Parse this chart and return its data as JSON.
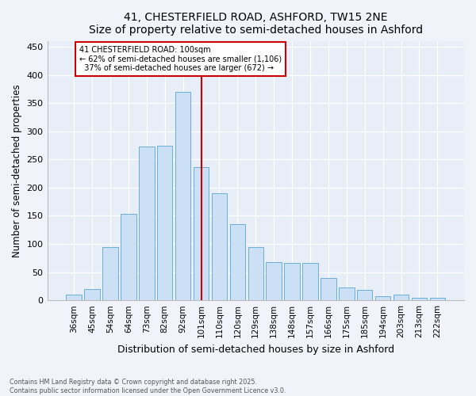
{
  "title": "41, CHESTERFIELD ROAD, ASHFORD, TW15 2NE",
  "subtitle": "Size of property relative to semi-detached houses in Ashford",
  "xlabel": "Distribution of semi-detached houses by size in Ashford",
  "ylabel": "Number of semi-detached properties",
  "categories": [
    "36sqm",
    "45sqm",
    "54sqm",
    "64sqm",
    "73sqm",
    "82sqm",
    "92sqm",
    "101sqm",
    "110sqm",
    "120sqm",
    "129sqm",
    "138sqm",
    "148sqm",
    "157sqm",
    "166sqm",
    "175sqm",
    "185sqm",
    "194sqm",
    "203sqm",
    "213sqm",
    "222sqm"
  ],
  "values": [
    10,
    20,
    95,
    153,
    273,
    275,
    370,
    237,
    190,
    135,
    95,
    68,
    67,
    67,
    40,
    23,
    18,
    7,
    10,
    5,
    5
  ],
  "bar_color": "#cce0f5",
  "bar_edge_color": "#6aaed6",
  "property_label": "41 CHESTERFIELD ROAD: 100sqm",
  "annotation_line1": "← 62% of semi-detached houses are smaller (1,106)",
  "annotation_line2": "37% of semi-detached houses are larger (672) →",
  "vline_color": "#cc0000",
  "annotation_box_color": "#cc0000",
  "ylim": [
    0,
    460
  ],
  "yticks": [
    0,
    50,
    100,
    150,
    200,
    250,
    300,
    350,
    400,
    450
  ],
  "bg_color": "#e8eef8",
  "fig_color": "#f0f4fa",
  "footer_line1": "Contains HM Land Registry data © Crown copyright and database right 2025.",
  "footer_line2": "Contains public sector information licensed under the Open Government Licence v3.0."
}
